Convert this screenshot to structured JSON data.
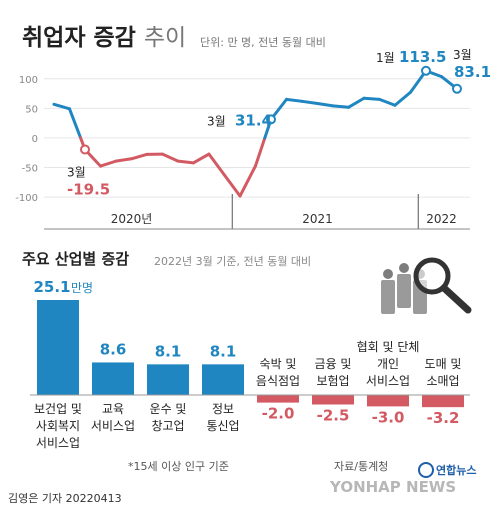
{
  "title_bold": "취업자 증감",
  "title_light": "추이",
  "unit_note": "단위: 만 명, 전년 동월 대비",
  "section2_title": "주요 산업별 증감",
  "section2_note": "2022년 3월 기준, 전년 동월 대비",
  "footnote": "*15세 이상 인구 기준",
  "source": "자료/통계청",
  "byline": "김영은 기자  20220413",
  "logo_text": "연합뉴스",
  "watermark": "YONHAP NEWS",
  "colors": {
    "blue": "#1f86c1",
    "red": "#d35a63",
    "grid": "#e6e6e6"
  },
  "chart_data": [
    {
      "type": "line",
      "x": [
        "2020-01",
        "2020-02",
        "2020-03",
        "2020-04",
        "2020-05",
        "2020-06",
        "2020-07",
        "2020-08",
        "2020-09",
        "2020-10",
        "2020-11",
        "2020-12",
        "2021-01",
        "2021-02",
        "2021-03",
        "2021-04",
        "2021-05",
        "2021-06",
        "2021-07",
        "2021-08",
        "2021-09",
        "2021-10",
        "2021-11",
        "2021-12",
        "2022-01",
        "2022-02",
        "2022-03"
      ],
      "values": [
        56.8,
        49.2,
        -19.5,
        -47.6,
        -39.2,
        -35.2,
        -27.7,
        -27.4,
        -39.2,
        -42.1,
        -27.3,
        -62.8,
        -98.2,
        -47.3,
        31.4,
        65.2,
        61.9,
        58.2,
        54.2,
        51.8,
        67.1,
        65.2,
        55.3,
        77.3,
        113.5,
        103.7,
        83.1
      ],
      "ylim": [
        -110,
        125
      ],
      "yticks": [
        100,
        50,
        0,
        -50,
        -100
      ],
      "year_labels": [
        {
          "label": "2020년",
          "x": "2020-06"
        },
        {
          "label": "2021",
          "x": "2021-06"
        },
        {
          "label": "2022",
          "x": "2022-02"
        }
      ],
      "annotations": [
        {
          "x": "2020-03",
          "month_label": "3월",
          "value_label": "-19.5",
          "color": "red"
        },
        {
          "x": "2021-03",
          "month_label": "3월",
          "value_label": "31.4",
          "color": "blue"
        },
        {
          "x": "2022-01",
          "month_label": "1월",
          "value_label": "113.5",
          "color": "blue"
        },
        {
          "x": "2022-03",
          "month_label": "3월",
          "value_label": "83.1",
          "color": "blue"
        }
      ]
    },
    {
      "type": "bar",
      "categories": [
        [
          "보건업 및",
          "사회복지",
          "서비스업"
        ],
        [
          "교육",
          "서비스업"
        ],
        [
          "운수 및",
          "창고업"
        ],
        [
          "정보",
          "통신업"
        ],
        [
          "숙박 및",
          "음식점업"
        ],
        [
          "금융 및",
          "보험업"
        ],
        [
          "협회 및 단체",
          "개인",
          "서비스업"
        ],
        [
          "도매 및",
          "소매업"
        ]
      ],
      "values": [
        25.1,
        8.6,
        8.1,
        8.1,
        -2.0,
        -2.5,
        -3.0,
        -3.2
      ],
      "value_labels": [
        "25.1",
        "8.6",
        "8.1",
        "8.1",
        "-2.0",
        "-2.5",
        "-3.0",
        "-3.2"
      ],
      "first_value_unit": "만명"
    }
  ]
}
